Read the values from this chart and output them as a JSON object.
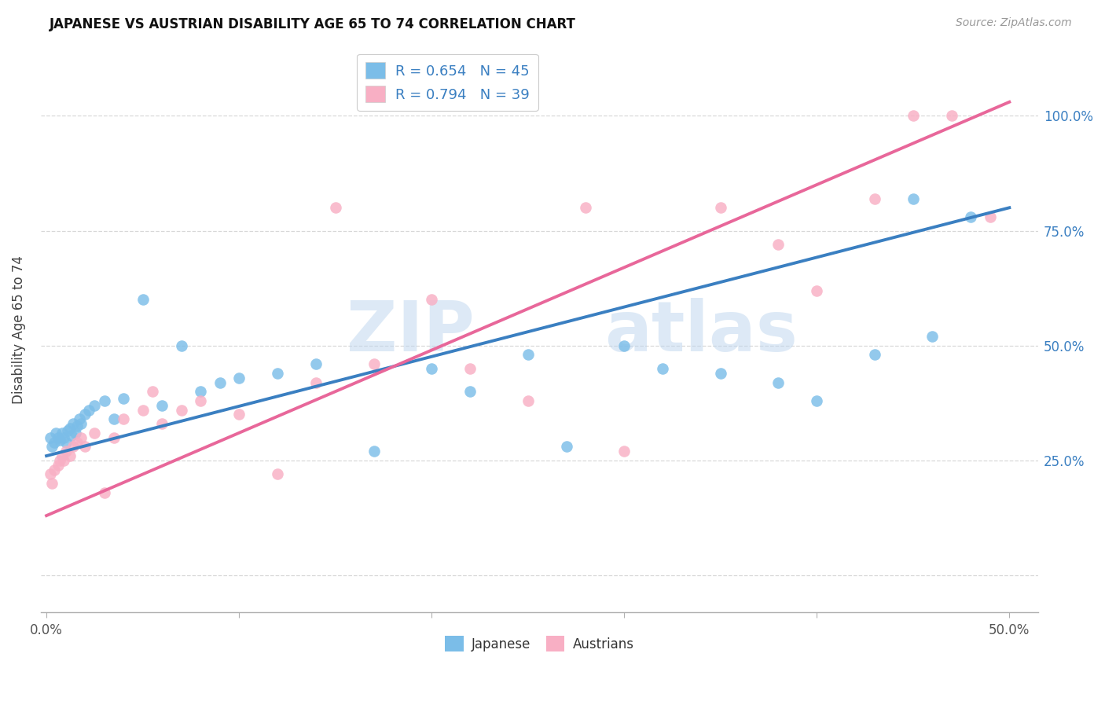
{
  "title": "JAPANESE VS AUSTRIAN DISABILITY AGE 65 TO 74 CORRELATION CHART",
  "source": "Source: ZipAtlas.com",
  "ylabel": "Disability Age 65 to 74",
  "xlim": [
    0.0,
    50.0
  ],
  "ylim": [
    -5.0,
    112.0
  ],
  "color_japanese": "#7bbde8",
  "color_austrians": "#f8afc4",
  "color_line_japanese": "#3a7fc1",
  "color_line_austrian": "#e8679a",
  "watermark_zip": "ZIP",
  "watermark_atlas": "atlas",
  "japanese_x": [
    0.2,
    0.3,
    0.4,
    0.5,
    0.6,
    0.7,
    0.8,
    0.9,
    1.0,
    1.1,
    1.2,
    1.3,
    1.4,
    1.5,
    1.6,
    1.7,
    1.8,
    2.0,
    2.2,
    2.5,
    3.0,
    3.5,
    4.0,
    5.0,
    6.0,
    7.0,
    8.0,
    9.0,
    10.0,
    12.0,
    14.0,
    17.0,
    20.0,
    22.0,
    25.0,
    27.0,
    30.0,
    32.0,
    35.0,
    38.0,
    40.0,
    43.0,
    45.0,
    46.0,
    48.0
  ],
  "japanese_y": [
    30.0,
    28.0,
    29.0,
    31.0,
    30.0,
    29.5,
    31.0,
    30.0,
    29.0,
    31.5,
    32.0,
    30.5,
    33.0,
    31.0,
    32.5,
    34.0,
    33.0,
    35.0,
    36.0,
    37.0,
    38.0,
    34.0,
    38.5,
    60.0,
    37.0,
    50.0,
    40.0,
    42.0,
    43.0,
    44.0,
    46.0,
    27.0,
    45.0,
    40.0,
    48.0,
    28.0,
    50.0,
    45.0,
    44.0,
    42.0,
    38.0,
    48.0,
    82.0,
    52.0,
    78.0
  ],
  "austrian_x": [
    0.2,
    0.3,
    0.4,
    0.6,
    0.7,
    0.8,
    0.9,
    1.0,
    1.2,
    1.4,
    1.6,
    1.8,
    2.0,
    2.5,
    3.0,
    3.5,
    4.0,
    5.0,
    6.0,
    7.0,
    8.0,
    10.0,
    12.0,
    14.0,
    17.0,
    20.0,
    22.0,
    25.0,
    28.0,
    30.0,
    35.0,
    38.0,
    40.0,
    43.0,
    45.0,
    47.0,
    49.0,
    5.5,
    15.0
  ],
  "austrian_y": [
    22.0,
    20.0,
    23.0,
    24.0,
    25.0,
    26.0,
    25.0,
    27.0,
    26.0,
    28.0,
    29.0,
    30.0,
    28.0,
    31.0,
    18.0,
    30.0,
    34.0,
    36.0,
    33.0,
    36.0,
    38.0,
    35.0,
    22.0,
    42.0,
    46.0,
    60.0,
    45.0,
    38.0,
    80.0,
    27.0,
    80.0,
    72.0,
    62.0,
    82.0,
    100.0,
    100.0,
    78.0,
    40.0,
    80.0
  ],
  "blue_line_x0": 0.0,
  "blue_line_y0": 26.0,
  "blue_line_x1": 50.0,
  "blue_line_y1": 80.0,
  "pink_line_x0": 0.0,
  "pink_line_y0": 13.0,
  "pink_line_x1": 50.0,
  "pink_line_y1": 103.0
}
